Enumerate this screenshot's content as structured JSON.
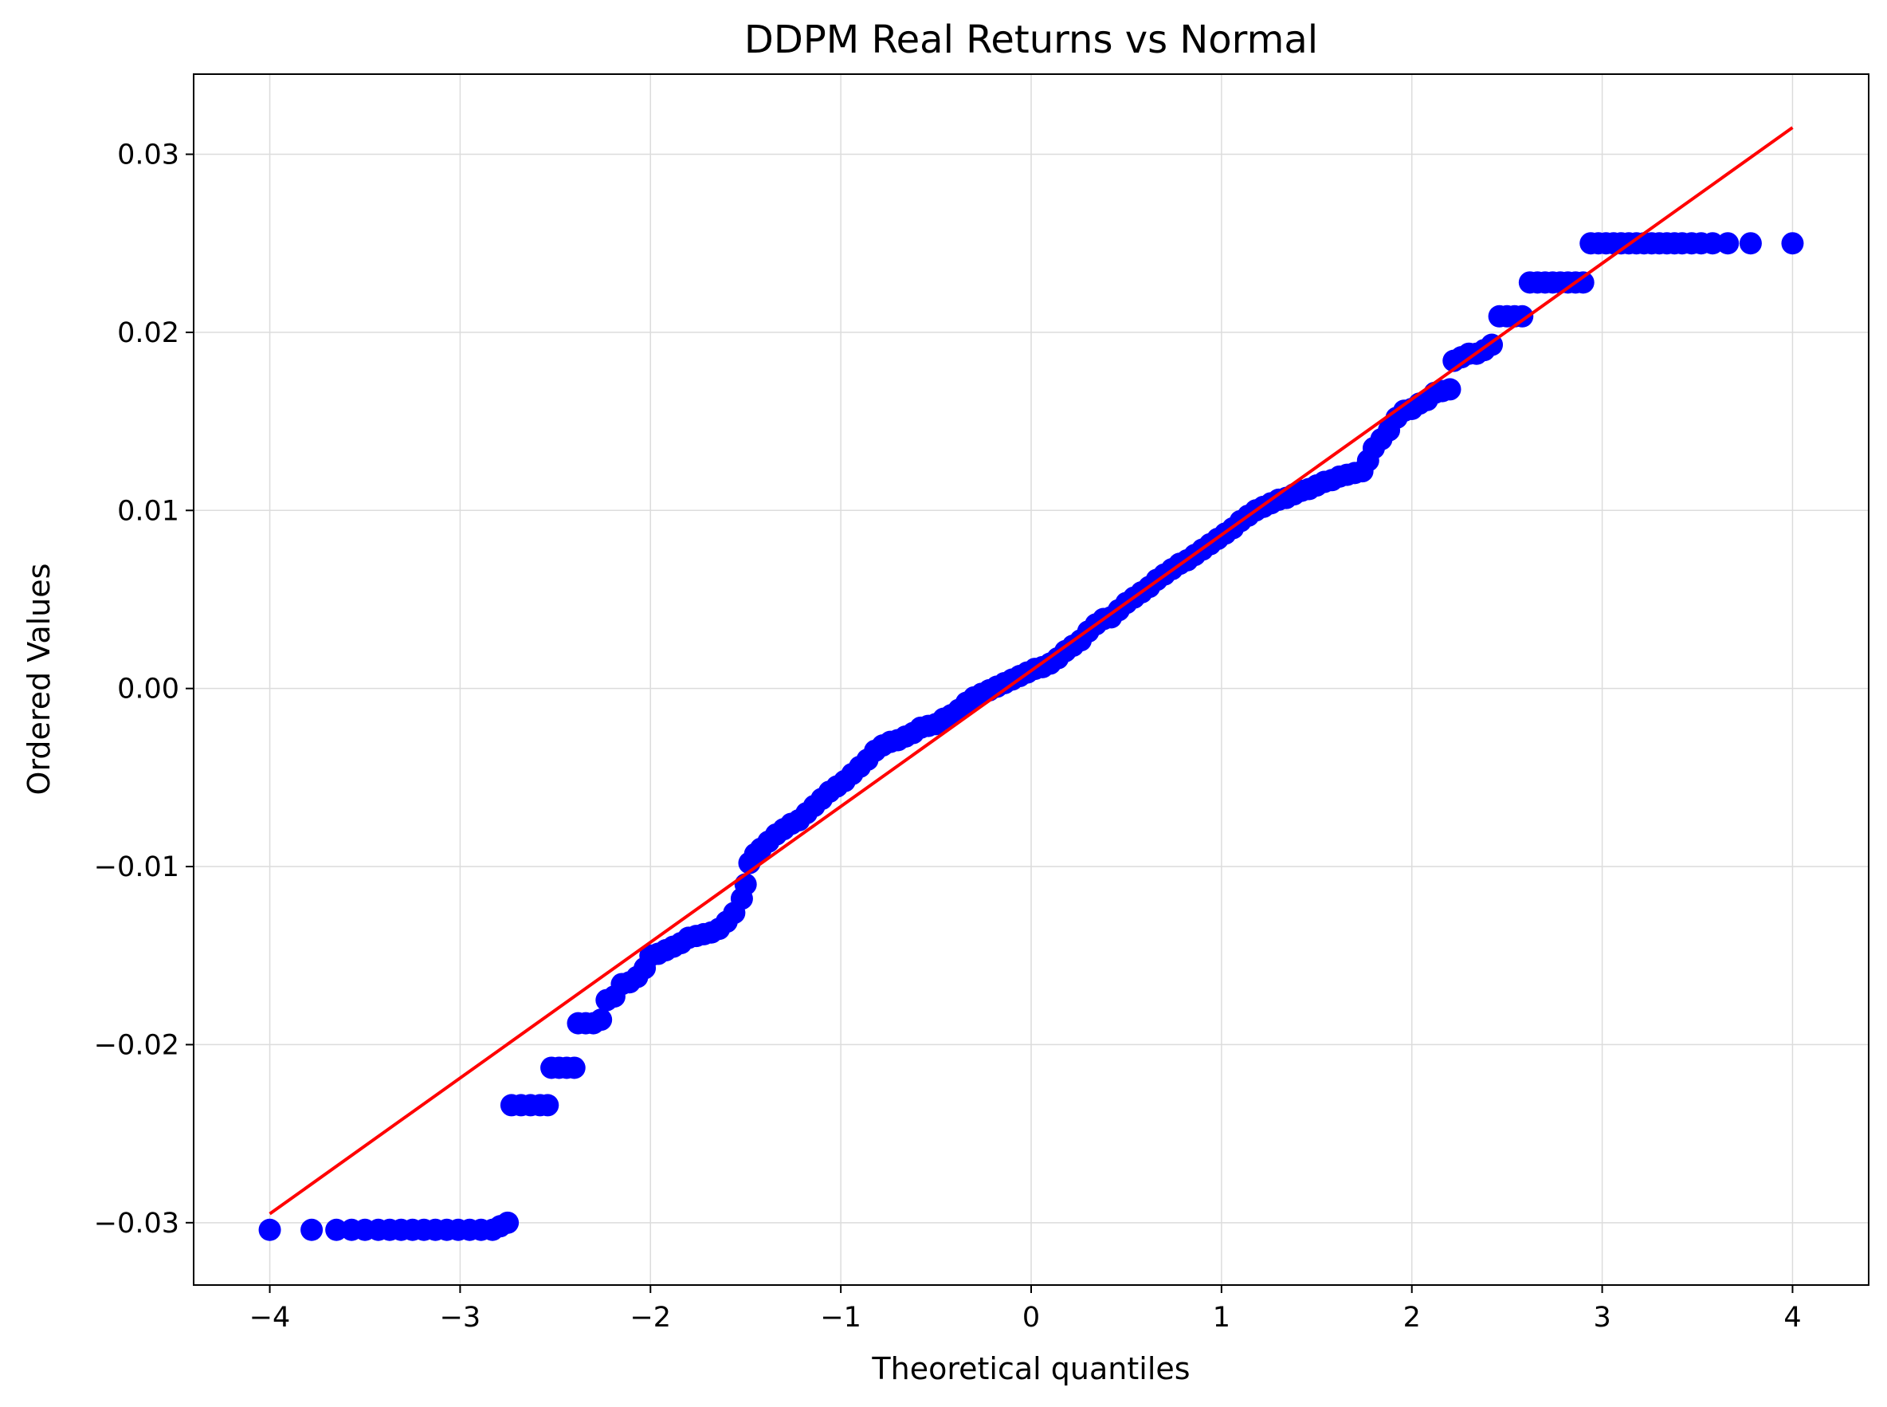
{
  "chart_data": {
    "type": "scatter",
    "title": "DDPM Real Returns vs Normal",
    "xlabel": "Theoretical quantiles",
    "ylabel": "Ordered Values",
    "xlim": [
      -4.4,
      4.4
    ],
    "ylim": [
      -0.0335,
      0.0345
    ],
    "xticks": [
      {
        "value": -4,
        "label": "−4"
      },
      {
        "value": -3,
        "label": "−3"
      },
      {
        "value": -2,
        "label": "−2"
      },
      {
        "value": -1,
        "label": "−1"
      },
      {
        "value": 0,
        "label": "0"
      },
      {
        "value": 1,
        "label": "1"
      },
      {
        "value": 2,
        "label": "2"
      },
      {
        "value": 3,
        "label": "3"
      },
      {
        "value": 4,
        "label": "4"
      }
    ],
    "yticks": [
      {
        "value": -0.03,
        "label": "−0.03"
      },
      {
        "value": -0.02,
        "label": "−0.02"
      },
      {
        "value": -0.01,
        "label": "−0.01"
      },
      {
        "value": 0.0,
        "label": "0.00"
      },
      {
        "value": 0.01,
        "label": "0.01"
      },
      {
        "value": 0.02,
        "label": "0.02"
      },
      {
        "value": 0.03,
        "label": "0.03"
      }
    ],
    "grid": true,
    "series": [
      {
        "kind": "points",
        "color": "#0000ff",
        "points": [
          [
            -4.0,
            -0.0304
          ],
          [
            -3.78,
            -0.0304
          ],
          [
            -3.65,
            -0.0304
          ],
          [
            -3.57,
            -0.0304
          ],
          [
            -3.5,
            -0.0304
          ],
          [
            -3.43,
            -0.0304
          ],
          [
            -3.37,
            -0.0304
          ],
          [
            -3.31,
            -0.0304
          ],
          [
            -3.25,
            -0.0304
          ],
          [
            -3.19,
            -0.0304
          ],
          [
            -3.13,
            -0.0304
          ],
          [
            -3.07,
            -0.0304
          ],
          [
            -3.01,
            -0.0304
          ],
          [
            -2.95,
            -0.0304
          ],
          [
            -2.89,
            -0.0304
          ],
          [
            -2.83,
            -0.0304
          ],
          [
            -2.79,
            -0.0302
          ],
          [
            -2.75,
            -0.03
          ],
          [
            -2.73,
            -0.0234
          ],
          [
            -2.68,
            -0.0234
          ],
          [
            -2.63,
            -0.0234
          ],
          [
            -2.58,
            -0.0234
          ],
          [
            -2.54,
            -0.0234
          ],
          [
            -2.52,
            -0.0213
          ],
          [
            -2.48,
            -0.0213
          ],
          [
            -2.44,
            -0.0213
          ],
          [
            -2.4,
            -0.0213
          ],
          [
            -2.38,
            -0.0188
          ],
          [
            -2.34,
            -0.0188
          ],
          [
            -2.3,
            -0.0188
          ],
          [
            -2.26,
            -0.0186
          ],
          [
            -2.23,
            -0.0175
          ],
          [
            -2.19,
            -0.0173
          ],
          [
            -2.15,
            -0.0166
          ],
          [
            -2.11,
            -0.0165
          ],
          [
            -2.07,
            -0.0162
          ],
          [
            -2.03,
            -0.0157
          ],
          [
            -2.0,
            -0.015
          ],
          [
            -1.96,
            -0.0149
          ],
          [
            -1.92,
            -0.0147
          ],
          [
            -1.88,
            -0.0145
          ],
          [
            -1.84,
            -0.0143
          ],
          [
            -1.8,
            -0.014
          ],
          [
            -1.76,
            -0.0139
          ],
          [
            -1.72,
            -0.0138
          ],
          [
            -1.68,
            -0.0137
          ],
          [
            -1.64,
            -0.0135
          ],
          [
            -1.6,
            -0.0131
          ],
          [
            -1.56,
            -0.0126
          ],
          [
            -1.52,
            -0.0118
          ],
          [
            -1.5,
            -0.011
          ],
          [
            -1.48,
            -0.0098
          ],
          [
            -1.45,
            -0.0093
          ],
          [
            -1.42,
            -0.009
          ],
          [
            -1.38,
            -0.0086
          ],
          [
            -1.34,
            -0.0082
          ],
          [
            -1.3,
            -0.0079
          ],
          [
            -1.26,
            -0.0076
          ],
          [
            -1.22,
            -0.0074
          ],
          [
            -1.18,
            -0.007
          ],
          [
            -1.14,
            -0.0066
          ],
          [
            -1.1,
            -0.0062
          ],
          [
            -1.06,
            -0.0058
          ],
          [
            -1.02,
            -0.0055
          ],
          [
            -0.98,
            -0.0052
          ],
          [
            -0.94,
            -0.0048
          ],
          [
            -0.9,
            -0.0044
          ],
          [
            -0.86,
            -0.004
          ],
          [
            -0.82,
            -0.0035
          ],
          [
            -0.78,
            -0.0032
          ],
          [
            -0.74,
            -0.003
          ],
          [
            -0.7,
            -0.0029
          ],
          [
            -0.66,
            -0.0027
          ],
          [
            -0.62,
            -0.0025
          ],
          [
            -0.58,
            -0.0022
          ],
          [
            -0.54,
            -0.0021
          ],
          [
            -0.5,
            -0.002
          ],
          [
            -0.46,
            -0.0017
          ],
          [
            -0.42,
            -0.0015
          ],
          [
            -0.38,
            -0.0012
          ],
          [
            -0.34,
            -0.0008
          ],
          [
            -0.3,
            -0.0005
          ],
          [
            -0.26,
            -0.0003
          ],
          [
            -0.22,
            -0.0001
          ],
          [
            -0.18,
            0.0001
          ],
          [
            -0.14,
            0.0003
          ],
          [
            -0.1,
            0.0005
          ],
          [
            -0.06,
            0.0007
          ],
          [
            -0.02,
            0.0009
          ],
          [
            0.02,
            0.0011
          ],
          [
            0.06,
            0.0012
          ],
          [
            0.1,
            0.0014
          ],
          [
            0.14,
            0.0017
          ],
          [
            0.18,
            0.0021
          ],
          [
            0.22,
            0.0024
          ],
          [
            0.26,
            0.0027
          ],
          [
            0.3,
            0.0032
          ],
          [
            0.34,
            0.0036
          ],
          [
            0.38,
            0.0039
          ],
          [
            0.42,
            0.004
          ],
          [
            0.46,
            0.0044
          ],
          [
            0.5,
            0.0048
          ],
          [
            0.54,
            0.0051
          ],
          [
            0.58,
            0.0054
          ],
          [
            0.62,
            0.0057
          ],
          [
            0.66,
            0.0061
          ],
          [
            0.7,
            0.0064
          ],
          [
            0.74,
            0.0067
          ],
          [
            0.78,
            0.007
          ],
          [
            0.82,
            0.0072
          ],
          [
            0.86,
            0.0075
          ],
          [
            0.9,
            0.0078
          ],
          [
            0.94,
            0.0081
          ],
          [
            0.98,
            0.0084
          ],
          [
            1.02,
            0.0087
          ],
          [
            1.06,
            0.009
          ],
          [
            1.1,
            0.0094
          ],
          [
            1.14,
            0.0097
          ],
          [
            1.18,
            0.01
          ],
          [
            1.22,
            0.0102
          ],
          [
            1.26,
            0.0104
          ],
          [
            1.3,
            0.0106
          ],
          [
            1.34,
            0.0107
          ],
          [
            1.38,
            0.0109
          ],
          [
            1.42,
            0.0111
          ],
          [
            1.46,
            0.0112
          ],
          [
            1.5,
            0.0114
          ],
          [
            1.54,
            0.0116
          ],
          [
            1.58,
            0.0117
          ],
          [
            1.62,
            0.0119
          ],
          [
            1.66,
            0.012
          ],
          [
            1.7,
            0.0121
          ],
          [
            1.74,
            0.0122
          ],
          [
            1.77,
            0.0128
          ],
          [
            1.8,
            0.0135
          ],
          [
            1.84,
            0.014
          ],
          [
            1.88,
            0.0145
          ],
          [
            1.92,
            0.0152
          ],
          [
            1.96,
            0.0156
          ],
          [
            2.0,
            0.0157
          ],
          [
            2.04,
            0.016
          ],
          [
            2.08,
            0.0162
          ],
          [
            2.12,
            0.0166
          ],
          [
            2.16,
            0.0167
          ],
          [
            2.2,
            0.0168
          ],
          [
            2.22,
            0.0184
          ],
          [
            2.26,
            0.0186
          ],
          [
            2.3,
            0.0188
          ],
          [
            2.34,
            0.0188
          ],
          [
            2.38,
            0.019
          ],
          [
            2.42,
            0.0193
          ],
          [
            2.46,
            0.0209
          ],
          [
            2.5,
            0.0209
          ],
          [
            2.54,
            0.0209
          ],
          [
            2.58,
            0.0209
          ],
          [
            2.62,
            0.0228
          ],
          [
            2.66,
            0.0228
          ],
          [
            2.7,
            0.0228
          ],
          [
            2.74,
            0.0228
          ],
          [
            2.78,
            0.0228
          ],
          [
            2.82,
            0.0228
          ],
          [
            2.86,
            0.0228
          ],
          [
            2.9,
            0.0228
          ],
          [
            2.94,
            0.025
          ],
          [
            2.98,
            0.025
          ],
          [
            3.02,
            0.025
          ],
          [
            3.06,
            0.025
          ],
          [
            3.1,
            0.025
          ],
          [
            3.14,
            0.025
          ],
          [
            3.18,
            0.025
          ],
          [
            3.22,
            0.025
          ],
          [
            3.26,
            0.025
          ],
          [
            3.3,
            0.025
          ],
          [
            3.34,
            0.025
          ],
          [
            3.38,
            0.025
          ],
          [
            3.42,
            0.025
          ],
          [
            3.47,
            0.025
          ],
          [
            3.52,
            0.025
          ],
          [
            3.58,
            0.025
          ],
          [
            3.66,
            0.025
          ],
          [
            3.78,
            0.025
          ],
          [
            4.0,
            0.025
          ]
        ]
      },
      {
        "kind": "line",
        "color": "#ff0000",
        "points": [
          [
            -4.0,
            -0.0295
          ],
          [
            4.0,
            0.0315
          ]
        ]
      }
    ]
  }
}
